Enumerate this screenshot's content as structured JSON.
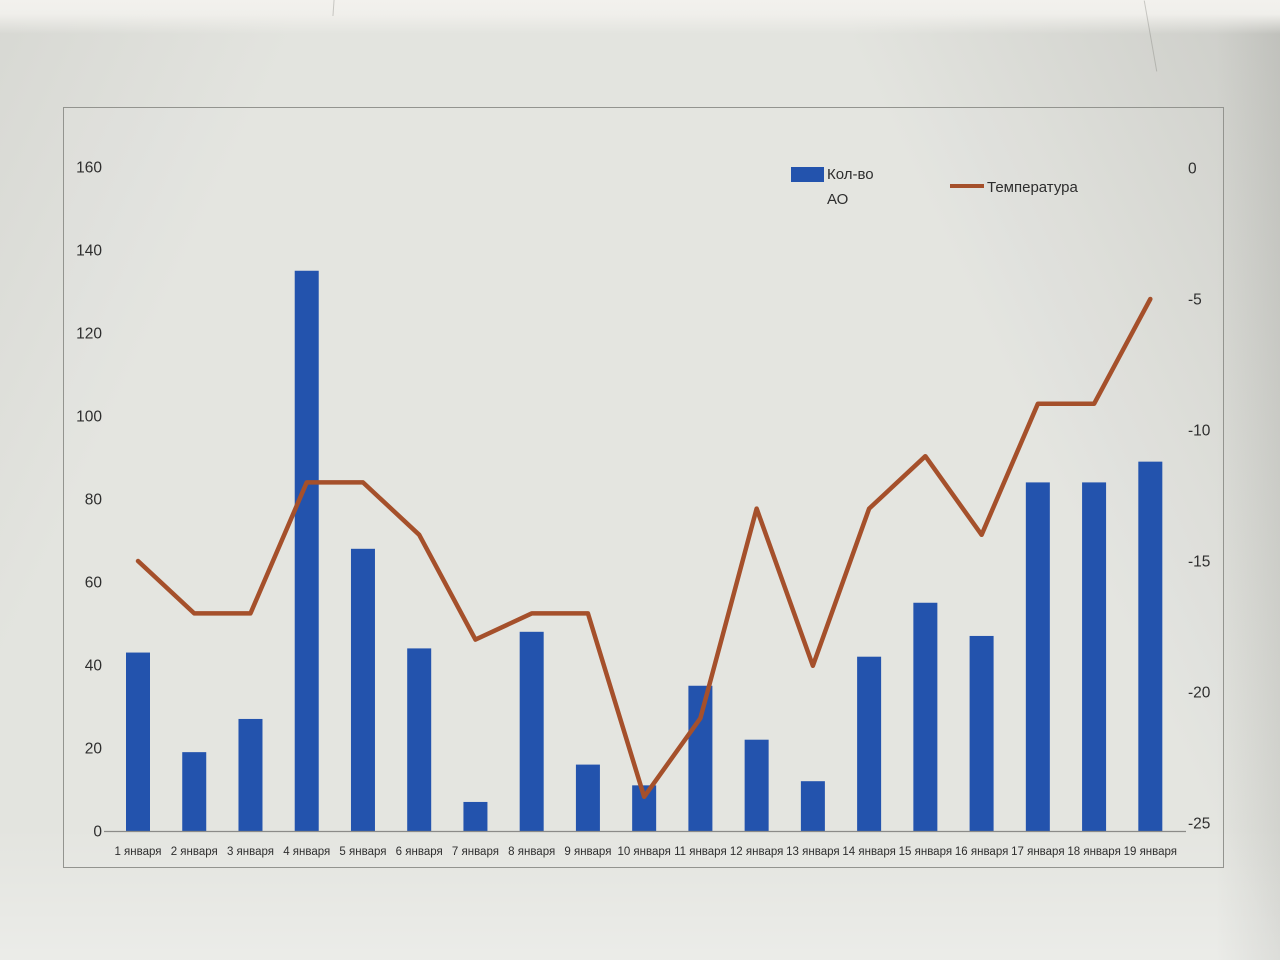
{
  "colors": {
    "bar": "#2353ad",
    "line": "#a5502b",
    "paper": "#e3e4df",
    "frame_border": "#93948f",
    "axis_line": "#8b8b88",
    "text": "#2e2e2e"
  },
  "legend": {
    "bar_label": "Кол-во АО",
    "line_label": "Температура"
  },
  "chart_data": {
    "type": "combo-bar-line",
    "categories": [
      "1 января",
      "2 января",
      "3 января",
      "4 января",
      "5 января",
      "6 января",
      "7 января",
      "8 января",
      "9 января",
      "10 января",
      "11 января",
      "12 января",
      "13 января",
      "14 января",
      "15 января",
      "16 января",
      "17 января",
      "18 января",
      "19 января"
    ],
    "series": [
      {
        "name": "Кол-во АО",
        "type": "bar",
        "axis": "left",
        "values": [
          43,
          19,
          27,
          135,
          68,
          44,
          7,
          48,
          16,
          11,
          35,
          22,
          12,
          42,
          55,
          47,
          84,
          84,
          89
        ]
      },
      {
        "name": "Температура",
        "type": "line",
        "axis": "right",
        "values": [
          -15,
          -17,
          -17,
          -12,
          -12,
          -14,
          -18,
          -17,
          -17,
          -24,
          -21,
          -13,
          -19,
          -13,
          -11,
          -14,
          -9,
          -9,
          -5
        ]
      }
    ],
    "left_axis": {
      "range": [
        0,
        160
      ],
      "ticks": [
        160,
        140,
        120,
        100,
        80,
        60,
        40,
        20,
        0
      ]
    },
    "right_axis": {
      "range": [
        -25,
        0
      ],
      "ticks": [
        0,
        -5,
        -10,
        -15,
        -20,
        -25
      ]
    },
    "legend_position": "top-right",
    "grid": false,
    "title": ""
  }
}
